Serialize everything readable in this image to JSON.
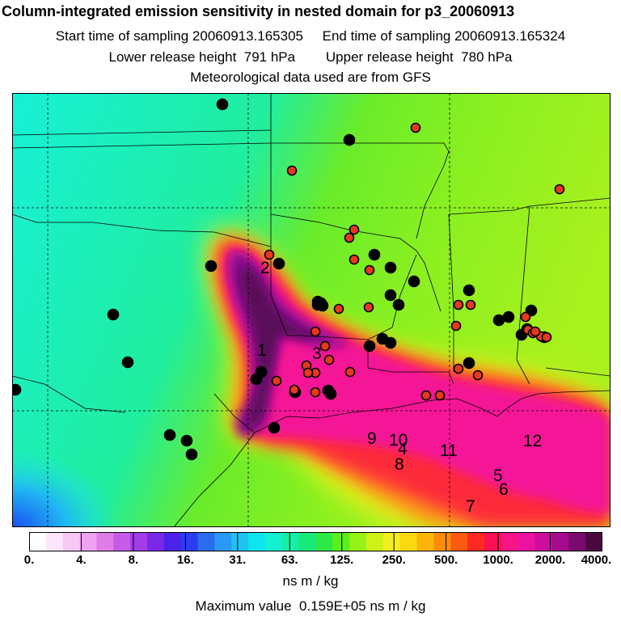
{
  "header": {
    "title": "Column-integrated emission sensitivity in nested domain for p3_20060913",
    "line1": "Start time of sampling 20060913.165305     End time of sampling 20060913.165324",
    "line2": "Lower release height  791 hPa        Upper release height  780 hPa",
    "line3": "Meteorological data used are from GFS"
  },
  "colorbar": {
    "colors": [
      "#ffffff",
      "#fde6fb",
      "#f8c8f5",
      "#f0a2f0",
      "#e07ce8",
      "#c85ae8",
      "#a23ee8",
      "#7a28e8",
      "#4a22e8",
      "#2a3ef0",
      "#2a6cf0",
      "#2a98f4",
      "#20c2f4",
      "#10e4ee",
      "#12f2d0",
      "#14eea6",
      "#18ea7a",
      "#2ee848",
      "#5aee1c",
      "#96f216",
      "#cef218",
      "#f2ee20",
      "#fcd810",
      "#fcb40a",
      "#fc8c0a",
      "#fc5a10",
      "#fc2a22",
      "#fc1054",
      "#f81486",
      "#ea12a0",
      "#cc0e9c",
      "#a60a8c",
      "#7a0a6e",
      "#4a0a40"
    ],
    "tick_labels": [
      "0.",
      "4.",
      "8.",
      "16.",
      "31.",
      "63.",
      "125.",
      "250.",
      "500.",
      "1000.",
      "2000.",
      "4000."
    ],
    "units": "ns m / kg"
  },
  "max_value_text": "Maximum value  0.159E+05 ns m / kg",
  "region_labels": [
    "1",
    "2",
    "3",
    "4",
    "5",
    "6",
    "7",
    "8",
    "9",
    "10",
    "11",
    "12"
  ],
  "marker_colors": {
    "black": "#000000",
    "red": "#e8381e"
  }
}
